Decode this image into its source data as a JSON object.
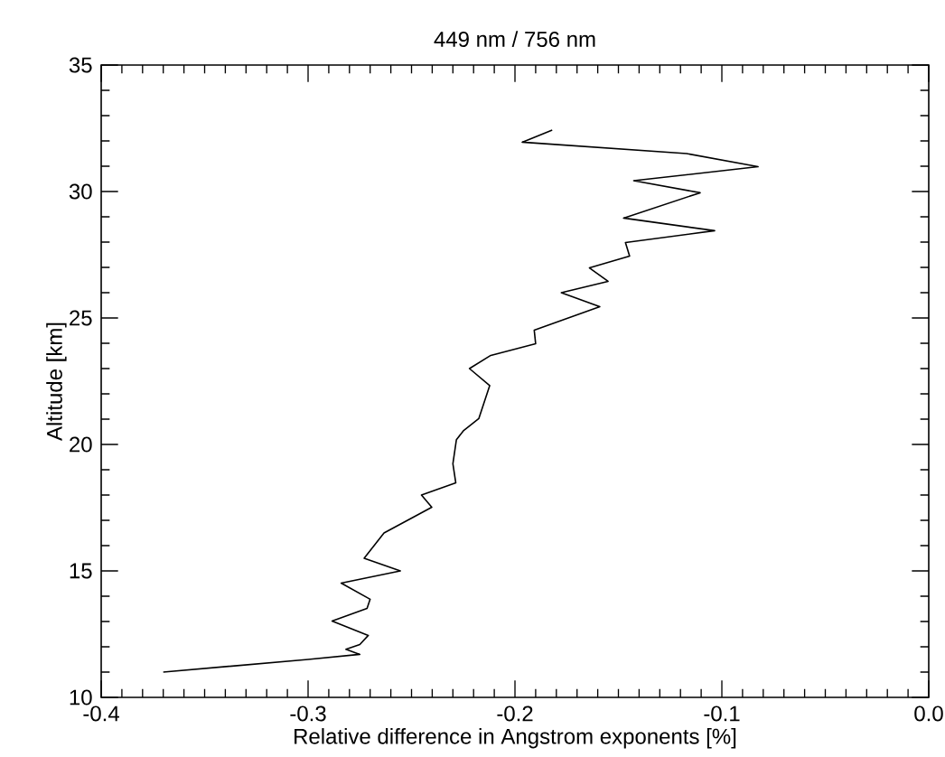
{
  "chart_data": {
    "type": "line",
    "title": "449 nm / 756 nm",
    "xlabel": "Relative difference in Angstrom exponents [%]",
    "ylabel": "Altitude [km]",
    "xlim": [
      -0.4,
      0.0
    ],
    "ylim": [
      10,
      35
    ],
    "xticks": [
      -0.4,
      -0.3,
      -0.2,
      -0.1,
      {
        "value": 0,
        "label": "0.0"
      }
    ],
    "yticks": [
      10,
      15,
      20,
      25,
      30,
      35
    ],
    "marker": "none",
    "line_style": "solid",
    "series": [
      {
        "color": "#000000",
        "x": [
          -0.37,
          -0.3,
          -0.275,
          -0.2817,
          -0.275,
          -0.2709,
          -0.2884,
          -0.2715,
          -0.27,
          -0.284,
          -0.2554,
          -0.2729,
          -0.2633,
          -0.2402,
          -0.2452,
          -0.2286,
          -0.23,
          -0.2283,
          -0.2248,
          -0.2175,
          -0.2122,
          -0.222,
          -0.2117,
          -0.19,
          -0.1907,
          -0.159,
          -0.1776,
          -0.155,
          -0.164,
          -0.1446,
          -0.1466,
          -0.1035,
          -0.1475,
          -0.1105,
          -0.1426,
          -0.0825,
          -0.117,
          -0.1965,
          -0.182
        ],
        "values": [
          11.0,
          11.5,
          11.7,
          11.9,
          12.09,
          12.45,
          13.02,
          13.52,
          13.88,
          14.52,
          15.0,
          15.5,
          16.5,
          17.52,
          18.0,
          18.48,
          19.24,
          20.19,
          20.55,
          21.02,
          22.33,
          23.0,
          23.52,
          23.98,
          24.52,
          25.45,
          26.0,
          26.45,
          26.98,
          27.45,
          27.98,
          28.45,
          28.95,
          29.95,
          30.43,
          30.98,
          31.5,
          31.95,
          32.43
        ]
      }
    ]
  }
}
